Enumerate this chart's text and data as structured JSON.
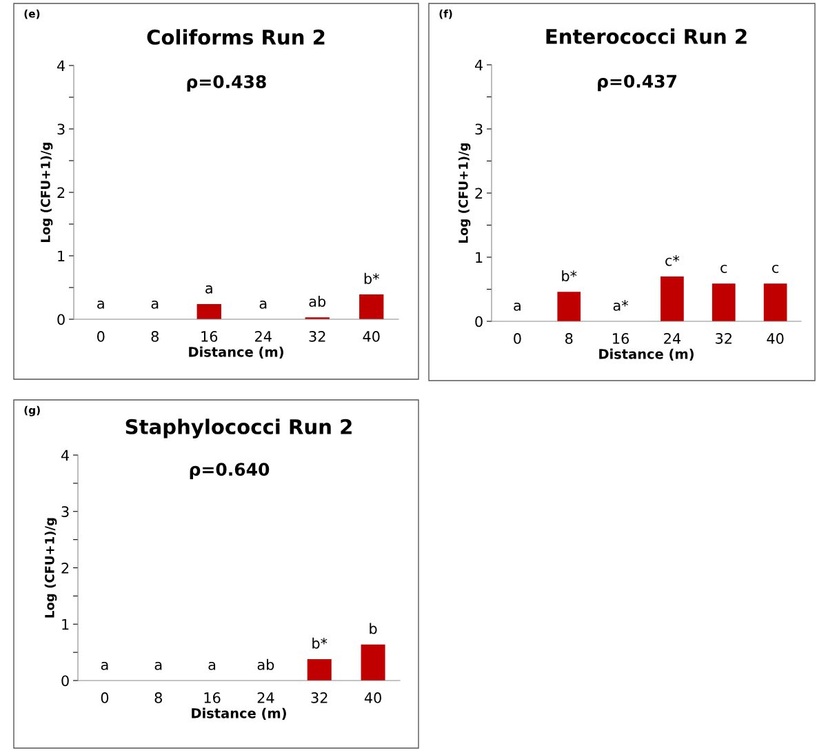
{
  "chart_data": [
    {
      "type": "bar",
      "title": "Coliforms Run 2",
      "subtitle": "ρ=0.438",
      "xlabel": "Distance (m)",
      "ylabel": "Log (CFU+1)/g",
      "categories": [
        "0",
        "8",
        "16",
        "24",
        "32",
        "40"
      ],
      "values": [
        0,
        0,
        0.24,
        0,
        0.03,
        0.39
      ],
      "color": "#c00000",
      "value_labels": [
        "a",
        "a",
        "a",
        "a",
        "ab",
        "b*"
      ],
      "ylim": [
        0,
        4
      ],
      "yticks": [
        0,
        {
          "value": 0.5,
          "label": null
        },
        1,
        {
          "value": 1.5,
          "label": null
        },
        2,
        {
          "value": 2.5,
          "label": null
        },
        3,
        {
          "value": 3.5,
          "label": null
        },
        4
      ],
      "grid": false,
      "annotations": [
        "(e)"
      ]
    },
    {
      "type": "bar",
      "title": "Enterococci Run 2",
      "subtitle": "ρ=0.437",
      "xlabel": "Distance (m)",
      "ylabel": "Log (CFU+1)/g",
      "categories": [
        "0",
        "8",
        "16",
        "24",
        "32",
        "40"
      ],
      "values": [
        0,
        0.46,
        0,
        0.7,
        0.59,
        0.59
      ],
      "color": "#c00000",
      "value_labels": [
        "a",
        "b*",
        "a*",
        "c*",
        "c",
        "c"
      ],
      "ylim": [
        0,
        4
      ],
      "yticks": [
        0,
        {
          "value": 0.5,
          "label": null
        },
        1,
        {
          "value": 1.5,
          "label": null
        },
        2,
        {
          "value": 2.5,
          "label": null
        },
        3,
        {
          "value": 3.5,
          "label": null
        },
        4
      ],
      "grid": false,
      "annotations": [
        "(f)"
      ]
    },
    {
      "type": "bar",
      "title": "Staphylococci Run 2",
      "subtitle": "ρ=0.640",
      "xlabel": "Distance (m)",
      "ylabel": "Log (CFU+1)/g",
      "categories": [
        "0",
        "8",
        "16",
        "24",
        "32",
        "40"
      ],
      "values": [
        0,
        0,
        0,
        0,
        0.38,
        0.64
      ],
      "color": "#c00000",
      "value_labels": [
        "a",
        "a",
        "a",
        "ab",
        "b*",
        "b"
      ],
      "ylim": [
        0,
        4
      ],
      "yticks": [
        0,
        {
          "value": 0.5,
          "label": null
        },
        1,
        {
          "value": 1.5,
          "label": null
        },
        2,
        {
          "value": 2.5,
          "label": null
        },
        3,
        {
          "value": 3.5,
          "label": null
        },
        4
      ],
      "grid": false,
      "annotations": [
        "(g)"
      ]
    }
  ]
}
